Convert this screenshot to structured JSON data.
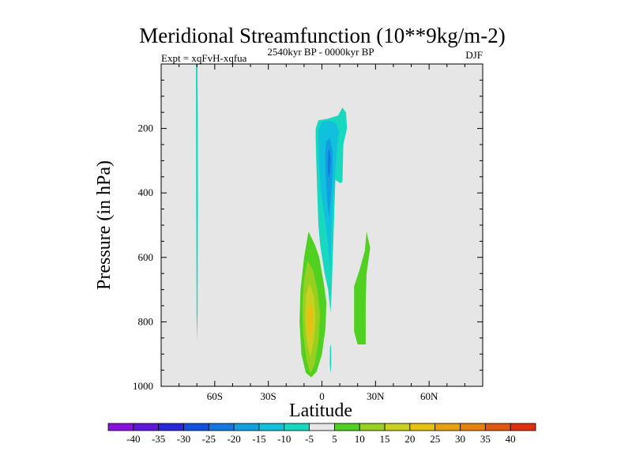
{
  "chart_data": {
    "type": "contour",
    "title": "Meridional Streamfunction (10**9kg/m-2)",
    "subtitle_left": "Expt = xqFvH-xqfua",
    "subtitle_center": "2540kyr BP - 0000kyr BP",
    "subtitle_right": "DJF",
    "xlabel": "Latitude",
    "ylabel": "Pressure (in hPa)",
    "xlim": [
      -90,
      90
    ],
    "ylim": [
      0,
      1000
    ],
    "y_inverted": true,
    "background_color": "#e6e6e6",
    "x_ticks": [
      {
        "value": -60,
        "label": "60S"
      },
      {
        "value": -30,
        "label": "30S"
      },
      {
        "value": 0,
        "label": "0"
      },
      {
        "value": 30,
        "label": "30N"
      },
      {
        "value": 60,
        "label": "60N"
      }
    ],
    "y_ticks": [
      {
        "value": 200,
        "label": "200"
      },
      {
        "value": 400,
        "label": "400"
      },
      {
        "value": 600,
        "label": "600"
      },
      {
        "value": 800,
        "label": "800"
      },
      {
        "value": 1000,
        "label": "1000"
      }
    ],
    "colorbar": {
      "labels": [
        "-40",
        "-35",
        "-30",
        "-25",
        "-20",
        "-15",
        "-10",
        "-5",
        "5",
        "10",
        "15",
        "20",
        "25",
        "30",
        "35",
        "40"
      ],
      "colors": [
        "#8a10e0",
        "#6018d8",
        "#2828d8",
        "#1450e0",
        "#1478e0",
        "#10a0e0",
        "#10c0dc",
        "#18d8c0",
        "#e6e6e6",
        "#50d020",
        "#98d020",
        "#c8d020",
        "#e8c010",
        "#e8a010",
        "#e88010",
        "#e05810",
        "#e03010"
      ]
    },
    "contours": [
      {
        "name": "narrow-cell-60S",
        "level": -5,
        "color": "#18d8c0",
        "points": [
          [
            -70.5,
            0
          ],
          [
            -69.7,
            0
          ],
          [
            -69.5,
            150
          ],
          [
            -69.4,
            420
          ],
          [
            -69.6,
            780
          ],
          [
            -69.9,
            860
          ],
          [
            -70.2,
            780
          ],
          [
            -70.4,
            420
          ],
          [
            -70.5,
            150
          ]
        ]
      },
      {
        "name": "upper-neg-cell-outer",
        "level": -5,
        "color": "#18d8c0",
        "points": [
          [
            -3.5,
            200
          ],
          [
            -2,
            175
          ],
          [
            3,
            170
          ],
          [
            9,
            160
          ],
          [
            11.5,
            135
          ],
          [
            13.5,
            150
          ],
          [
            14,
            200
          ],
          [
            12,
            250
          ],
          [
            11.5,
            365
          ],
          [
            10.5,
            370
          ],
          [
            7.5,
            360
          ],
          [
            5.5,
            700
          ],
          [
            4.8,
            770
          ],
          [
            3.5,
            700
          ],
          [
            1.5,
            650
          ],
          [
            -1,
            560
          ],
          [
            -2,
            500
          ],
          [
            -3.2,
            300
          ],
          [
            -3.5,
            230
          ]
        ]
      },
      {
        "name": "upper-neg-cell-mid",
        "level": -10,
        "color": "#10c0dc",
        "points": [
          [
            -2,
            205
          ],
          [
            0,
            180
          ],
          [
            4,
            175
          ],
          [
            8,
            185
          ],
          [
            9.5,
            210
          ],
          [
            8.5,
            260
          ],
          [
            6.5,
            400
          ],
          [
            5.5,
            500
          ],
          [
            4.5,
            640
          ],
          [
            3.5,
            560
          ],
          [
            1.5,
            470
          ],
          [
            -0.5,
            400
          ],
          [
            -1.5,
            320
          ]
        ]
      },
      {
        "name": "upper-neg-cell-inner",
        "level": -15,
        "color": "#10a0e0",
        "points": [
          [
            2.5,
            240
          ],
          [
            4.5,
            230
          ],
          [
            6,
            270
          ],
          [
            6,
            330
          ],
          [
            5,
            420
          ],
          [
            4,
            480
          ],
          [
            3,
            430
          ],
          [
            2,
            340
          ],
          [
            1.8,
            280
          ]
        ]
      },
      {
        "name": "upper-neg-cell-core",
        "level": -20,
        "color": "#1478e0",
        "points": [
          [
            3.5,
            270
          ],
          [
            4.5,
            265
          ],
          [
            5,
            300
          ],
          [
            4.5,
            340
          ],
          [
            3.8,
            355
          ],
          [
            3.2,
            320
          ]
        ]
      },
      {
        "name": "lower-pos-cell-outer",
        "level": 5,
        "color": "#50d020",
        "points": [
          [
            -7.5,
            520
          ],
          [
            -4,
            560
          ],
          [
            -1.5,
            600
          ],
          [
            1,
            680
          ],
          [
            2.5,
            740
          ],
          [
            2,
            820
          ],
          [
            0,
            900
          ],
          [
            -3,
            955
          ],
          [
            -6,
            972
          ],
          [
            -9,
            958
          ],
          [
            -11.5,
            900
          ],
          [
            -12.5,
            800
          ],
          [
            -12,
            700
          ],
          [
            -10,
            600
          ]
        ]
      },
      {
        "name": "lower-pos-cell-mid",
        "level": 10,
        "color": "#98d020",
        "points": [
          [
            -8,
            610
          ],
          [
            -5,
            640
          ],
          [
            -2.5,
            700
          ],
          [
            -1,
            780
          ],
          [
            -2,
            860
          ],
          [
            -4,
            930
          ],
          [
            -6.5,
            960
          ],
          [
            -8.5,
            920
          ],
          [
            -10.5,
            840
          ],
          [
            -11,
            750
          ],
          [
            -10,
            670
          ]
        ]
      },
      {
        "name": "lower-pos-cell-inner",
        "level": 15,
        "color": "#c8d020",
        "points": [
          [
            -7,
            680
          ],
          [
            -4.5,
            720
          ],
          [
            -3.5,
            790
          ],
          [
            -4.5,
            860
          ],
          [
            -6.5,
            910
          ],
          [
            -8.5,
            860
          ],
          [
            -9.5,
            780
          ],
          [
            -9,
            720
          ]
        ]
      },
      {
        "name": "lower-pos-cell-core",
        "level": 20,
        "color": "#e8c010",
        "points": [
          [
            -6.5,
            740
          ],
          [
            -5,
            770
          ],
          [
            -5.2,
            820
          ],
          [
            -6.5,
            860
          ],
          [
            -8,
            820
          ],
          [
            -8,
            770
          ]
        ]
      },
      {
        "name": "neg-sliver-equator",
        "level": -5,
        "color": "#18d8c0",
        "points": [
          [
            4.5,
            880
          ],
          [
            5.1,
            870
          ],
          [
            5.2,
            930
          ],
          [
            4.8,
            960
          ],
          [
            4.4,
            930
          ]
        ]
      },
      {
        "name": "pos-cell-20N",
        "level": 5,
        "color": "#50d020",
        "points": [
          [
            25,
            520
          ],
          [
            27,
            570
          ],
          [
            25,
            650
          ],
          [
            24.5,
            740
          ],
          [
            24.5,
            870
          ],
          [
            20,
            870
          ],
          [
            18,
            830
          ],
          [
            18,
            690
          ],
          [
            21,
            640
          ],
          [
            24,
            580
          ]
        ]
      }
    ]
  }
}
